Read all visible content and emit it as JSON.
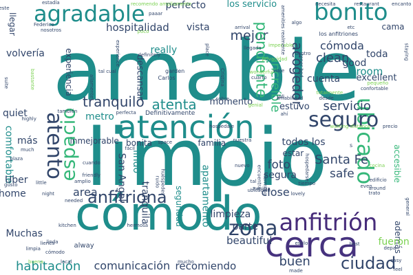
{
  "colors": {
    "teal": "#1f8d8b",
    "green": "#35b779",
    "lime": "#7ad151",
    "indigo": "#472c7a",
    "navy": "#31456a",
    "violet": "#46327e",
    "blue": "#39568c",
    "yellow": "#b5de2b"
  },
  "words": [
    {
      "text": "amable",
      "color": "#1f8d8b"
    },
    {
      "text": "limpio",
      "color": "#1f8d8b"
    },
    {
      "text": "atención",
      "color": "#1f8d8b"
    },
    {
      "text": "cómodo",
      "color": "#1f8d8b"
    },
    {
      "text": "cerca",
      "color": "#46327e"
    },
    {
      "text": "agradable",
      "color": "#1f8d8b"
    },
    {
      "text": "bonito",
      "color": "#1f8d8b"
    },
    {
      "text": "anfitrión",
      "color": "#472c7a"
    },
    {
      "text": "ubicado",
      "color": "#35b779"
    },
    {
      "text": "seguro",
      "color": "#31456a"
    },
    {
      "text": "atento",
      "color": "#31456a"
    },
    {
      "text": "espacio",
      "color": "#35b779"
    },
    {
      "text": "zona",
      "color": "#31456a"
    },
    {
      "text": "ciudad",
      "color": "#31456a"
    },
    {
      "text": "anfitriona",
      "color": "#31456a"
    },
    {
      "text": "habitación",
      "color": "#1f8d8b"
    },
    {
      "text": "comunicación",
      "color": "#31456a"
    },
    {
      "text": "recomiendo",
      "color": "#31456a"
    },
    {
      "text": "buen",
      "color": "#31456a"
    },
    {
      "text": "hospitalidad",
      "color": "#31456a"
    },
    {
      "text": "mejor",
      "color": "#31456a"
    },
    {
      "text": "cómoda",
      "color": "#31456a"
    },
    {
      "text": "clean",
      "color": "#31456a"
    },
    {
      "text": "acogedor",
      "color": "#31456a"
    },
    {
      "text": "increíble",
      "color": "#35b779"
    },
    {
      "text": "pendiente",
      "color": "#35b779"
    },
    {
      "text": "tranquilo",
      "color": "#31456a"
    },
    {
      "text": "atenta",
      "color": "#1f8d8b"
    },
    {
      "text": "servicio",
      "color": "#31456a"
    },
    {
      "text": "Santa Fe",
      "color": "#31456a"
    },
    {
      "text": "comfortable",
      "color": "#1f8d8b"
    },
    {
      "text": "metro",
      "color": "#1f8d8b"
    },
    {
      "text": "foto",
      "color": "#31456a"
    },
    {
      "text": "segura",
      "color": "#31456a"
    },
    {
      "text": "safe",
      "color": "#31456a"
    },
    {
      "text": "close",
      "color": "#31456a"
    },
    {
      "text": "lindo",
      "color": "#1f8d8b"
    },
    {
      "text": "tranquila",
      "color": "#31456a"
    },
    {
      "text": "San Angel",
      "color": "#31456a"
    },
    {
      "text": "seguridad",
      "color": "#1f8d8b"
    },
    {
      "text": "apartamento",
      "color": "#1f8d8b"
    },
    {
      "text": "limpieza",
      "color": "#31456a"
    },
    {
      "text": "parte",
      "color": "#31456a"
    },
    {
      "text": "beautiful",
      "color": "#31456a"
    },
    {
      "text": "Muchas",
      "color": "#31456a"
    },
    {
      "text": "area",
      "color": "#31456a"
    },
    {
      "text": "home",
      "color": "#31456a"
    },
    {
      "text": "volvería",
      "color": "#31456a"
    },
    {
      "text": "experiencia",
      "color": "#31456a"
    },
    {
      "text": "perfecto",
      "color": "#31456a"
    },
    {
      "text": "vista",
      "color": "#31456a"
    },
    {
      "text": "los servicio",
      "color": "#1f8d8b"
    },
    {
      "text": "descansar",
      "color": "#31456a"
    },
    {
      "text": "really",
      "color": "#1f8d8b"
    },
    {
      "text": "momento",
      "color": "#31456a"
    },
    {
      "text": "estuvo",
      "color": "#31456a"
    },
    {
      "text": "todos los",
      "color": "#31456a"
    },
    {
      "text": "room",
      "color": "#1f8d8b"
    },
    {
      "text": "good",
      "color": "#31456a"
    },
    {
      "text": "cuenta",
      "color": "#31456a"
    },
    {
      "text": "excellent",
      "color": "#31456a"
    },
    {
      "text": "toda",
      "color": "#31456a"
    },
    {
      "text": "cama",
      "color": "#31456a"
    },
    {
      "text": "familia",
      "color": "#31456a"
    },
    {
      "text": "bonita",
      "color": "#31456a"
    },
    {
      "text": "inmejorable",
      "color": "#31456a"
    },
    {
      "text": "quiet",
      "color": "#31456a"
    },
    {
      "text": "más",
      "color": "#31456a"
    },
    {
      "text": "Uber",
      "color": "#31456a"
    },
    {
      "text": "llegar",
      "color": "#31456a"
    },
    {
      "text": "estar",
      "color": "#31456a"
    },
    {
      "text": "accesible",
      "color": "#35b779"
    },
    {
      "text": "además",
      "color": "#31456a"
    },
    {
      "text": "Definitivamente",
      "color": "#31456a"
    },
    {
      "text": "estadía",
      "color": "#31456a"
    },
    {
      "text": "recomendo ampliamente",
      "color": "#7ad151"
    },
    {
      "text": "necesita",
      "color": "#31456a"
    },
    {
      "text": "restaurant",
      "color": "#31456a"
    },
    {
      "text": "encanto",
      "color": "#31456a"
    },
    {
      "text": "arrival",
      "color": "#31456a"
    },
    {
      "text": "los anfitriones",
      "color": "#31456a"
    },
    {
      "text": "impecable",
      "color": "#7ad151"
    },
    {
      "text": "privacidad",
      "color": "#7ad151"
    },
    {
      "text": "wonderful",
      "color": "#7ad151"
    },
    {
      "text": "cuarto",
      "color": "#31456a"
    },
    {
      "text": "llegada",
      "color": "#31456a"
    },
    {
      "text": "garden",
      "color": "#31456a"
    },
    {
      "text": "Carlos",
      "color": "#31456a"
    },
    {
      "text": "tal cual",
      "color": "#31456a"
    },
    {
      "text": "poco",
      "color": "#7ad151"
    },
    {
      "text": "nosotros",
      "color": "#31456a"
    },
    {
      "text": "Federico",
      "color": "#31456a"
    },
    {
      "text": "también",
      "color": "#31456a"
    },
    {
      "text": "highly",
      "color": "#31456a"
    },
    {
      "text": "much",
      "color": "#31456a"
    },
    {
      "text": "cuando",
      "color": "#31456a"
    },
    {
      "text": "friendly",
      "color": "#31456a"
    },
    {
      "text": "amplio",
      "color": "#31456a"
    },
    {
      "text": "needed",
      "color": "#31456a"
    },
    {
      "text": "kitchen",
      "color": "#31456a"
    },
    {
      "text": "hermosa",
      "color": "#31456a"
    },
    {
      "text": "lienes",
      "color": "#31456a"
    },
    {
      "text": "linda",
      "color": "#31456a"
    },
    {
      "text": "alway",
      "color": "#31456a"
    },
    {
      "text": "paaar",
      "color": "#31456a"
    },
    {
      "text": "gusto",
      "color": "#31456a"
    },
    {
      "text": "plaza",
      "color": "#31456a"
    },
    {
      "text": "nuevo",
      "color": "#31456a"
    },
    {
      "text": "tiempo",
      "color": "#31456a"
    },
    {
      "text": "lovely",
      "color": "#31456a"
    },
    {
      "text": "Patricia",
      "color": "#31456a"
    },
    {
      "text": "even",
      "color": "#31456a"
    },
    {
      "text": "best",
      "color": "#31456a"
    },
    {
      "text": "depa",
      "color": "#31456a"
    },
    {
      "text": "easy",
      "color": "#31456a"
    },
    {
      "text": "feel",
      "color": "#31456a"
    },
    {
      "text": "trato",
      "color": "#31456a"
    },
    {
      "text": "around",
      "color": "#31456a"
    },
    {
      "text": "cocina",
      "color": "#7ad151"
    },
    {
      "text": "edificio",
      "color": "#31456a"
    },
    {
      "text": "general",
      "color": "#31456a"
    },
    {
      "text": "walking distance",
      "color": "#7ad151"
    },
    {
      "text": "precio",
      "color": "#31456a"
    },
    {
      "text": "totalmente",
      "color": "#7ad151"
    },
    {
      "text": "desde",
      "color": "#31456a"
    },
    {
      "text": "amabilidad",
      "color": "#31456a"
    },
    {
      "text": "confortable",
      "color": "#31456a"
    },
    {
      "text": "fácil",
      "color": "#31456a"
    },
    {
      "text": "space",
      "color": "#31456a"
    },
    {
      "text": "nuestra",
      "color": "#31456a"
    },
    {
      "text": "hospedarse",
      "color": "#31456a"
    },
    {
      "text": "ubicación",
      "color": "#31456a"
    },
    {
      "text": "encuentra",
      "color": "#31456a"
    },
    {
      "text": "hermoso",
      "color": "#31456a"
    },
    {
      "text": "tal",
      "color": "#31456a"
    },
    {
      "text": "estilo",
      "color": "#31456a"
    },
    {
      "text": "made",
      "color": "#31456a"
    },
    {
      "text": "perfecta",
      "color": "#31456a"
    },
    {
      "text": "genial",
      "color": "#7ad151"
    },
    {
      "text": "lofi",
      "color": "#31456a"
    },
    {
      "text": "night",
      "color": "#31456a"
    },
    {
      "text": "sobre",
      "color": "#31456a"
    },
    {
      "text": "viaje",
      "color": "#31456a"
    },
    {
      "text": "dentro",
      "color": "#31456a"
    },
    {
      "text": "tener bed",
      "color": "#31456a"
    },
    {
      "text": "staying",
      "color": "#31456a"
    },
    {
      "text": "suite",
      "color": "#31456a"
    },
    {
      "text": "bastante",
      "color": "#7ad151"
    },
    {
      "text": "este",
      "color": "#31456a"
    },
    {
      "text": "algo",
      "color": "#31456a"
    },
    {
      "text": "etc",
      "color": "#31456a"
    },
    {
      "text": "amenities realmente",
      "color": "#31456a"
    },
    {
      "text": "allamente",
      "color": "#31456a"
    },
    {
      "text": "definitely",
      "color": "#31456a"
    },
    {
      "text": "little",
      "color": "#31456a"
    },
    {
      "text": "place",
      "color": "#31456a"
    },
    {
      "text": "huéspedes",
      "color": "#31456a"
    },
    {
      "text": "ruido",
      "color": "#31456a"
    },
    {
      "text": "local",
      "color": "#31456a"
    },
    {
      "text": "buena",
      "color": "#7ad151"
    },
    {
      "text": "limpia",
      "color": "#31456a"
    },
    {
      "text": "fueron",
      "color": "#7ad151"
    },
    {
      "text": "s",
      "color": "#31456a"
    },
    {
      "text": "ahí",
      "color": "#31456a"
    },
    {
      "text": "pequeño",
      "color": "#7ad151"
    },
    {
      "text": "experience",
      "color": "#31456a"
    },
    {
      "text": "Cristina",
      "color": "#31456a"
    },
    {
      "text": "hospedaje",
      "color": "#31456a"
    },
    {
      "text": "cómodo",
      "color": "#31456a"
    },
    {
      "text": "mucho",
      "color": "#31456a"
    },
    {
      "text": "bien",
      "color": "#31456a"
    }
  ]
}
